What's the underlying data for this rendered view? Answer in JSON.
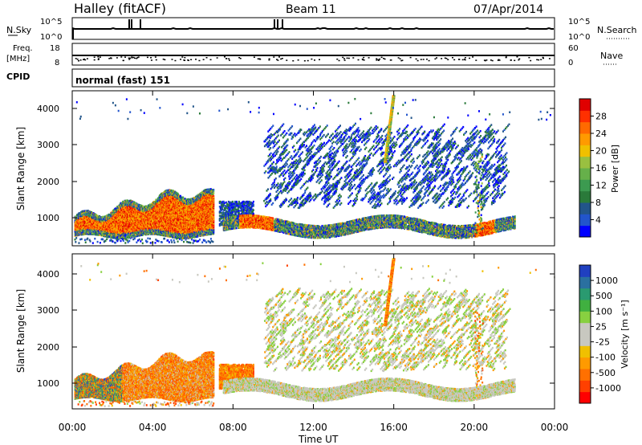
{
  "header": {
    "station": "Halley (fitACF)",
    "beam": "Beam 11",
    "date": "07/Apr/2014"
  },
  "panels": {
    "nsky": {
      "label": "N.Sky",
      "ticks": [
        "10^5",
        "10^0"
      ],
      "right_label": "N.Search",
      "right_ticks": [
        "10^5",
        "10^0"
      ]
    },
    "freq": {
      "label_line1": "Freq.",
      "label_line2": "[MHz]",
      "ticks": [
        "18",
        "8"
      ],
      "right_label": "Nave",
      "right_ticks": [
        "60",
        "0"
      ]
    },
    "cpid": {
      "label": "CPID",
      "text": "normal (fast) 151"
    }
  },
  "chart_data": [
    {
      "type": "heatmap",
      "name": "power",
      "ylabel": "Slant Range [km]",
      "y_ticks": [
        "4000",
        "3000",
        "2000",
        "1000"
      ],
      "colorbar_label": "Power [dB]",
      "colorbar_ticks": [
        "28",
        "24",
        "20",
        "16",
        "12",
        "8",
        "4"
      ],
      "colors": [
        "#0000ff",
        "#2255cc",
        "#22558a",
        "#2a7a3a",
        "#3c9a50",
        "#66b04a",
        "#99c040",
        "#f0c000",
        "#ff9a00",
        "#ff6a00",
        "#ff3000",
        "#e00000"
      ]
    },
    {
      "type": "heatmap",
      "name": "velocity",
      "ylabel": "Slant Range [km]",
      "y_ticks": [
        "4000",
        "3000",
        "2000",
        "1000"
      ],
      "colorbar_label": "Velocity [m s⁻¹]",
      "colorbar_ticks": [
        "1000",
        "500",
        "100",
        "25",
        "-25",
        "-100",
        "-500",
        "-1000"
      ],
      "colors": [
        "#ff0000",
        "#ff4000",
        "#ff7000",
        "#ff9a00",
        "#f0c000",
        "#c8c8c0",
        "#c8c8c0",
        "#88d040",
        "#40b040",
        "#2a9a70",
        "#2a70a0",
        "#2040c0"
      ]
    }
  ],
  "time_axis": {
    "label": "Time UT",
    "ticks": [
      "00:00",
      "04:00",
      "08:00",
      "12:00",
      "16:00",
      "20:00",
      "00:00"
    ]
  }
}
